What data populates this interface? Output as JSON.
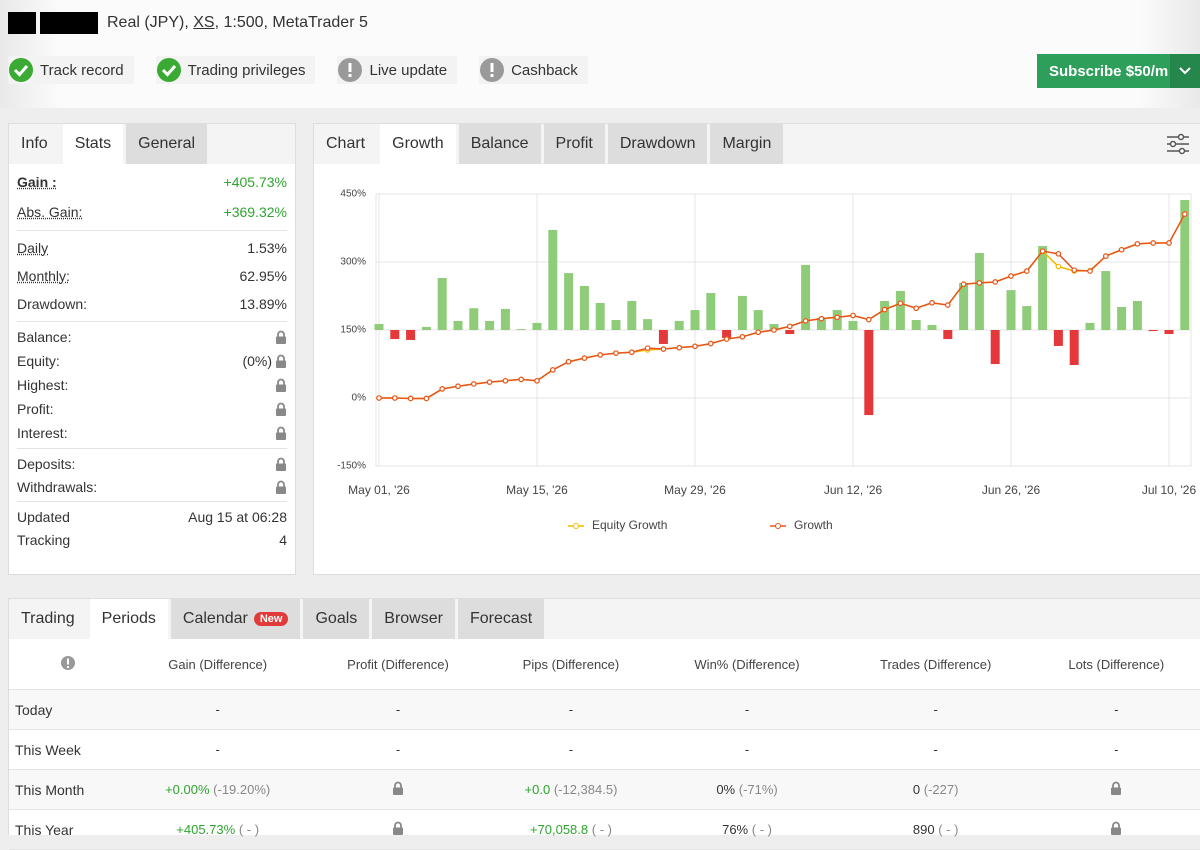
{
  "header": {
    "account_parts": [
      "Real (JPY),",
      "XS",
      ", 1:500, MetaTrader 5"
    ]
  },
  "badges": [
    {
      "label": "Track record",
      "status": "ok"
    },
    {
      "label": "Trading privileges",
      "status": "ok"
    },
    {
      "label": "Live update",
      "status": "warning"
    },
    {
      "label": "Cashback",
      "status": "warning"
    }
  ],
  "subscribe": "Subscribe $50/m",
  "info_tabs": {
    "items": [
      "Info",
      "Stats",
      "General"
    ],
    "active": 1,
    "plain": [
      0
    ]
  },
  "stats": [
    [
      {
        "label": "Gain :",
        "value": "+405.73%",
        "color": "#2ea52e",
        "hint": true,
        "strong": true
      },
      {
        "label": "Abs. Gain:",
        "value": "+369.32%",
        "color": "#2ea52e",
        "hint": true
      }
    ],
    [
      {
        "label": "Daily",
        "value": "1.53%",
        "hint": true
      },
      {
        "label": "Monthly:",
        "value": "62.95%",
        "hint": true
      },
      {
        "label": "Drawdown:",
        "value": "13.89%"
      }
    ],
    [
      {
        "label": "Balance:",
        "locked": true
      },
      {
        "label": "Equity:",
        "value": "(0%)",
        "locked": true
      },
      {
        "label": "Highest:",
        "locked": true
      },
      {
        "label": "Profit:",
        "locked": true
      },
      {
        "label": "Interest:",
        "locked": true
      }
    ],
    [
      {
        "label": "Deposits:",
        "locked": true
      },
      {
        "label": "Withdrawals:",
        "locked": true
      }
    ],
    [
      {
        "label": "Updated",
        "value": "Aug 15 at 06:28"
      },
      {
        "label": "Tracking",
        "value": "4"
      }
    ]
  ],
  "chart_tabs": {
    "items": [
      "Chart",
      "Growth",
      "Balance",
      "Profit",
      "Drawdown",
      "Margin"
    ],
    "active": 1,
    "plain": [
      0
    ]
  },
  "chart_data": {
    "type": "line",
    "categories": [
      "May 01, '26",
      null,
      null,
      null,
      null,
      null,
      null,
      null,
      null,
      null,
      "May 15, '26",
      null,
      null,
      null,
      null,
      null,
      null,
      null,
      null,
      null,
      "May 29, '26",
      null,
      null,
      null,
      null,
      null,
      null,
      null,
      null,
      null,
      "Jun 12, '26",
      null,
      null,
      null,
      null,
      null,
      null,
      null,
      null,
      null,
      "Jun 26, '26",
      null,
      null,
      null,
      null,
      null,
      null,
      null,
      null,
      null,
      "Jul 10, '26",
      null
    ],
    "ylim": [
      -150,
      450
    ],
    "yticks": [
      {
        "value": -150,
        "label": "-150%"
      },
      {
        "value": 0,
        "label": "0%"
      },
      {
        "value": 150,
        "label": "150%"
      },
      {
        "value": 300,
        "label": "300%"
      },
      {
        "value": 450,
        "label": "450%"
      }
    ],
    "y2lim": [
      -75,
      75
    ],
    "grid": true,
    "series": [
      {
        "type": "bar",
        "axis": "y2",
        "color": "#8fcc7a",
        "negative_color": "#e5383b",
        "values": [
          3.3,
          -5,
          -5.5,
          1.7,
          28.7,
          5,
          12,
          5,
          11.6,
          0.5,
          3.9,
          55.2,
          31.4,
          24.3,
          14.9,
          5.5,
          16,
          6,
          -7.7,
          5,
          11,
          20.4,
          -4.4,
          18.8,
          11,
          3.3,
          -2.2,
          35.9,
          6.6,
          11,
          5,
          -46.9,
          16,
          21.5,
          5.5,
          2.8,
          -5,
          25.9,
          42.5,
          -18.8,
          22,
          13.2,
          46.3,
          -8.8,
          -19.3,
          3.9,
          32.5,
          12.7,
          16,
          -0.6,
          -2.2,
          71.7
        ]
      },
      {
        "name": "Equity Growth",
        "color": "#f5b800",
        "values": [
          0,
          0,
          -1,
          -1,
          20,
          26,
          31,
          35,
          38,
          41,
          38,
          62,
          80,
          88,
          95,
          99,
          101,
          106,
          108,
          111,
          114,
          120,
          130,
          135,
          145,
          150,
          158,
          170,
          175,
          178,
          182,
          173,
          195,
          209,
          198,
          210,
          205,
          251,
          254,
          256,
          269,
          280,
          324,
          290,
          280,
          281,
          313,
          327,
          340,
          342,
          342,
          405.73
        ]
      },
      {
        "name": "Growth",
        "color": "#e8541e",
        "values": [
          0,
          0,
          -1,
          -1,
          20,
          26,
          31,
          35,
          38,
          41,
          38,
          62,
          80,
          88,
          95,
          99,
          101,
          110,
          108,
          111,
          114,
          120,
          130,
          135,
          145,
          150,
          158,
          170,
          175,
          178,
          182,
          173,
          195,
          209,
          198,
          210,
          205,
          251,
          254,
          256,
          269,
          280,
          324,
          318,
          282,
          280,
          313,
          327,
          340,
          342,
          342,
          405.73
        ]
      }
    ]
  },
  "bottom_tabs": {
    "items": [
      "Trading",
      "Periods",
      "Calendar",
      "Goals",
      "Browser",
      "Forecast"
    ],
    "active": 1,
    "plain": [
      0
    ],
    "badge": {
      "index": 2,
      "text": "New"
    }
  },
  "table": {
    "columns": [
      "Gain (Difference)",
      "Profit (Difference)",
      "Pips (Difference)",
      "Win% (Difference)",
      "Trades (Difference)",
      "Lots (Difference)"
    ],
    "green_columns": [
      0,
      2
    ],
    "rows": [
      {
        "label": "Today",
        "cells": [
          "-",
          "-",
          "-",
          "-",
          "-",
          "-"
        ]
      },
      {
        "label": "This Week",
        "cells": [
          "-",
          "-",
          "-",
          "-",
          "-",
          "-"
        ]
      },
      {
        "label": "This Month",
        "cells": [
          {
            "main": "+0.00%",
            "diff": "(-19.20%)"
          },
          null,
          {
            "main": "+0.0",
            "diff": "(-12,384.5)"
          },
          {
            "main": "0%",
            "diff": "(-71%)"
          },
          {
            "main": "0",
            "diff": "(-227)"
          },
          null
        ]
      },
      {
        "label": "This Year",
        "cells": [
          {
            "main": "+405.73%",
            "diff": "( - )"
          },
          null,
          {
            "main": "+70,058.8",
            "diff": "( - )"
          },
          {
            "main": "76%",
            "diff": "( - )"
          },
          {
            "main": "890",
            "diff": "( - )"
          },
          null
        ]
      }
    ]
  }
}
